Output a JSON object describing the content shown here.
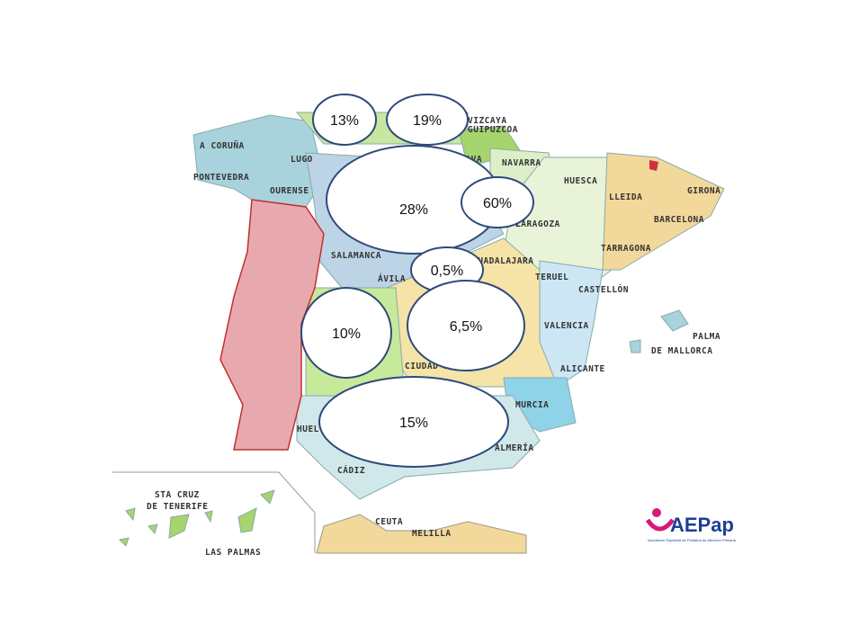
{
  "map": {
    "provinces": [
      "A CORUÑA",
      "LUGO",
      "PONTEVEDRA",
      "OURENSE",
      "VIZCAYA",
      "GUIPUZCOA",
      "ÁLAVA",
      "NAVARRA",
      "HUESCA",
      "LLEIDA",
      "GIRONA",
      "BARCELONA",
      "ZARAGOZA",
      "TARRAGONA",
      "SALAMANCA",
      "ÁVILA",
      "GUADALAJARA",
      "TERUEL",
      "CASTELLÓN",
      "VALENCIA",
      "PALMA",
      "DE MALLORCA",
      "ALICANTE",
      "MURCIA",
      "ALMERÍA",
      "CÁDIZ",
      "HUELVA",
      "CIUDAD REAL",
      "STA CRUZ",
      "DE TENERIFE",
      "LAS PALMAS",
      "CEUTA",
      "MELILLA"
    ],
    "bubbles": [
      "13%",
      "19%",
      "28%",
      "60%",
      "0,5%",
      "10%",
      "6,5%",
      "15%"
    ]
  },
  "logo": {
    "name": "AEPap",
    "subtitle": "Asociación Española de Pediatría de Atención Primaria"
  }
}
